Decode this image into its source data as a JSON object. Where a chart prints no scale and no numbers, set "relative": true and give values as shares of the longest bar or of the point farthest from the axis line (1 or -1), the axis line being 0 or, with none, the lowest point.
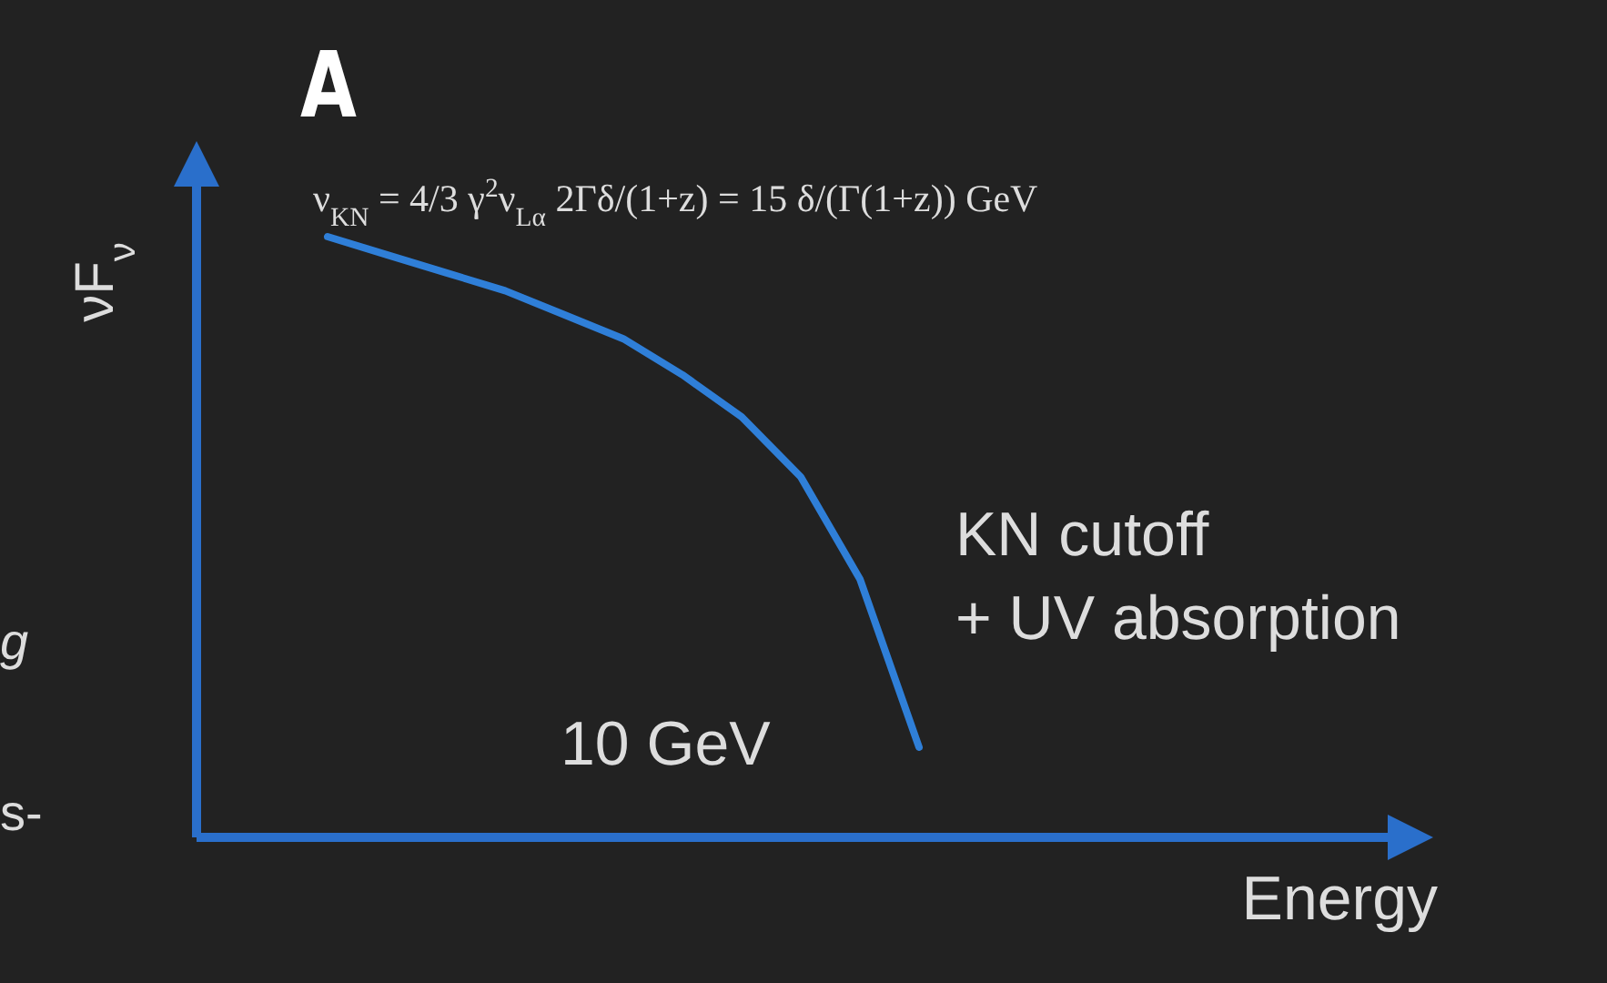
{
  "chart_data": {
    "type": "line",
    "title": "A",
    "xlabel": "Energy",
    "ylabel": "νF$_{ν}$",
    "relative": true,
    "color": "#2f7fd8",
    "categories": [
      null,
      null,
      null,
      null,
      null,
      null,
      null,
      null,
      null,
      null,
      null
    ],
    "values": [
      1,
      0.97,
      0.94,
      0.91,
      0.87,
      0.83,
      0.77,
      0.7,
      0.6,
      0.43,
      0.15
    ],
    "annotations": [
      "ν$_{KN}$ = 4/3 γ$^{2}$ν$_{Lα}$ 2Γδ/(1+z) = 15 δ/(Γ(1+z)) GeV",
      "KN cutoff\n+ UV absorption",
      "10 GeV",
      "g",
      "s-"
    ]
  }
}
